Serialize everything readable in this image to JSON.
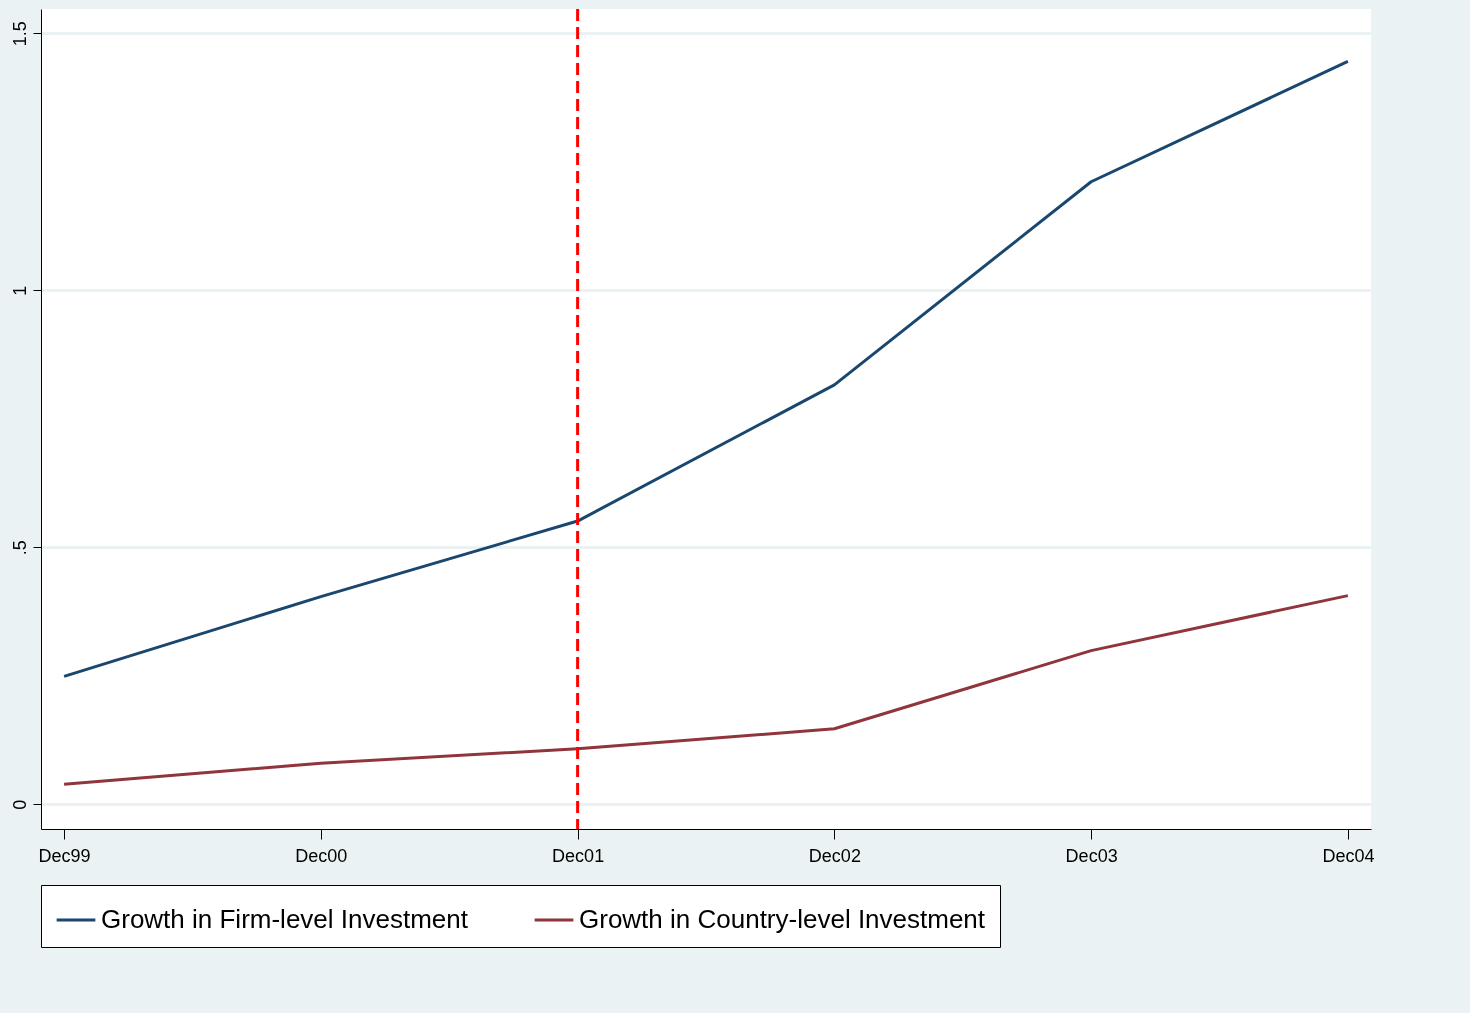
{
  "chart_data": {
    "type": "line",
    "categories": [
      "Dec99",
      "Dec00",
      "Dec01",
      "Dec02",
      "Dec03",
      "Dec04"
    ],
    "series": [
      {
        "name": "Growth in Firm-level Investment",
        "color": "#1a476f",
        "values": [
          0.249,
          0.404,
          0.551,
          0.816,
          1.211,
          1.445
        ]
      },
      {
        "name": "Growth in Country-level Investment",
        "color": "#90353b",
        "values": [
          0.039,
          0.08,
          0.108,
          0.147,
          0.299,
          0.406
        ]
      }
    ],
    "ylim": [
      -0.048,
      1.547
    ],
    "yticks": [
      0,
      {
        "value": 0.5,
        "label": ".5"
      },
      1,
      1.5
    ],
    "ref_lines": [
      {
        "axis": "x",
        "value": "Dec01",
        "color": "#ff0000",
        "line_style": "dashed"
      }
    ],
    "grid": "y",
    "legend": "bottom",
    "marker": "none",
    "line_style": "solid"
  }
}
